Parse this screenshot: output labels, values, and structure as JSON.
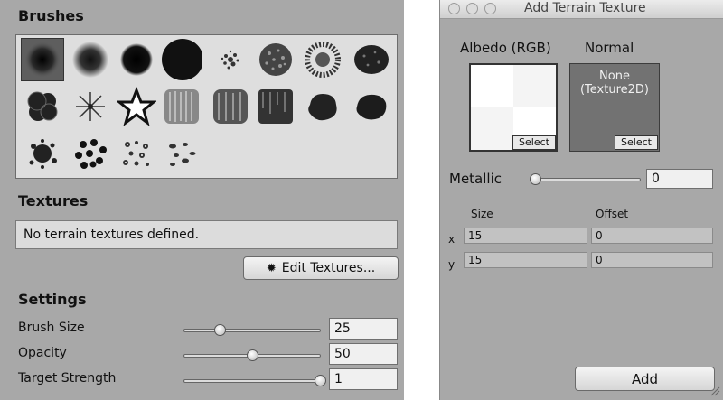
{
  "brushes_panel": {
    "section_title": "Brushes",
    "brushes": [
      {
        "icon": "brush-soft-round-selected-icon"
      },
      {
        "icon": "brush-soft-round-icon"
      },
      {
        "icon": "brush-medium-round-icon"
      },
      {
        "icon": "brush-hard-round-icon"
      },
      {
        "icon": "brush-splatter-small-icon"
      },
      {
        "icon": "brush-noise-icon"
      },
      {
        "icon": "brush-noise-ring-icon"
      },
      {
        "icon": "brush-noise-dark-icon"
      },
      {
        "icon": "brush-blob-icon"
      },
      {
        "icon": "brush-starburst-icon"
      },
      {
        "icon": "brush-star-outline-icon"
      },
      {
        "icon": "brush-streaks-light-icon"
      },
      {
        "icon": "brush-streaks-icon"
      },
      {
        "icon": "brush-streaks-dark-icon"
      },
      {
        "icon": "brush-rough-blob-icon"
      },
      {
        "icon": "brush-rough-blob-2-icon"
      },
      {
        "icon": "brush-splat-icon"
      },
      {
        "icon": "brush-dots-icon"
      },
      {
        "icon": "brush-flowers-icon"
      },
      {
        "icon": "brush-leaves-icon"
      }
    ]
  },
  "textures_panel": {
    "section_title": "Textures",
    "empty_message": "No terrain textures defined.",
    "edit_button_label": "Edit Textures..."
  },
  "settings": {
    "section_title": "Settings",
    "rows": [
      {
        "label": "Brush Size",
        "value": "25",
        "slider_fraction": 0.26
      },
      {
        "label": "Opacity",
        "value": "50",
        "slider_fraction": 0.5
      },
      {
        "label": "Target Strength",
        "value": "1",
        "slider_fraction": 1.0
      }
    ]
  },
  "dialog": {
    "title": "Add Terrain Texture",
    "albedo_label": "Albedo (RGB)",
    "normal_label": "Normal",
    "normal_placeholder_line1": "None",
    "normal_placeholder_line2": "(Texture2D)",
    "select_label": "Select",
    "metallic_label": "Metallic",
    "metallic_value": "0",
    "metallic_slider_fraction": 0.0,
    "size_header": "Size",
    "offset_header": "Offset",
    "x_label": "x",
    "y_label": "y",
    "size_x": "15",
    "size_y": "15",
    "offset_x": "0",
    "offset_y": "0",
    "add_button_label": "Add"
  }
}
